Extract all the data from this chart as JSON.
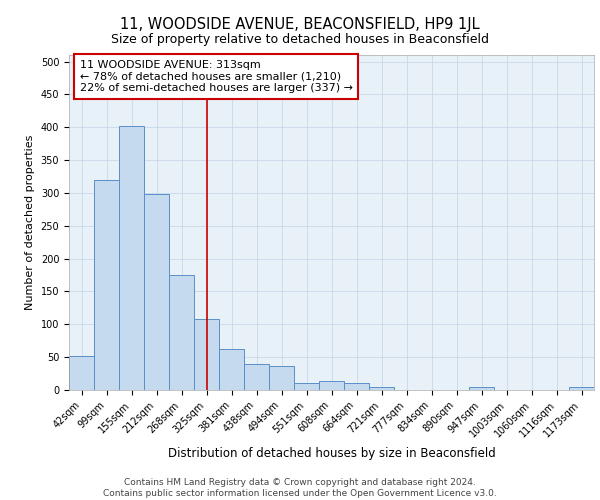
{
  "title": "11, WOODSIDE AVENUE, BEACONSFIELD, HP9 1JL",
  "subtitle": "Size of property relative to detached houses in Beaconsfield",
  "xlabel": "Distribution of detached houses by size in Beaconsfield",
  "ylabel": "Number of detached properties",
  "categories": [
    "42sqm",
    "99sqm",
    "155sqm",
    "212sqm",
    "268sqm",
    "325sqm",
    "381sqm",
    "438sqm",
    "494sqm",
    "551sqm",
    "608sqm",
    "664sqm",
    "721sqm",
    "777sqm",
    "834sqm",
    "890sqm",
    "947sqm",
    "1003sqm",
    "1060sqm",
    "1116sqm",
    "1173sqm"
  ],
  "values": [
    52,
    320,
    402,
    298,
    175,
    108,
    63,
    40,
    36,
    11,
    14,
    10,
    5,
    0,
    0,
    0,
    5,
    0,
    0,
    0,
    5
  ],
  "bar_color": "#c5d9ef",
  "bar_edge_color": "#5b8fc9",
  "grid_color": "#c8d8e8",
  "background_color": "#e8f0f8",
  "vline_x_index": 5,
  "vline_color": "#cc0000",
  "annotation_text": "11 WOODSIDE AVENUE: 313sqm\n← 78% of detached houses are smaller (1,210)\n22% of semi-detached houses are larger (337) →",
  "annotation_box_color": "#cc0000",
  "footer": "Contains HM Land Registry data © Crown copyright and database right 2024.\nContains public sector information licensed under the Open Government Licence v3.0.",
  "ylim": [
    0,
    510
  ],
  "yticks": [
    0,
    50,
    100,
    150,
    200,
    250,
    300,
    350,
    400,
    450,
    500
  ],
  "title_fontsize": 10.5,
  "subtitle_fontsize": 9,
  "xlabel_fontsize": 8.5,
  "ylabel_fontsize": 8,
  "tick_fontsize": 7,
  "annotation_fontsize": 8,
  "footer_fontsize": 6.5
}
